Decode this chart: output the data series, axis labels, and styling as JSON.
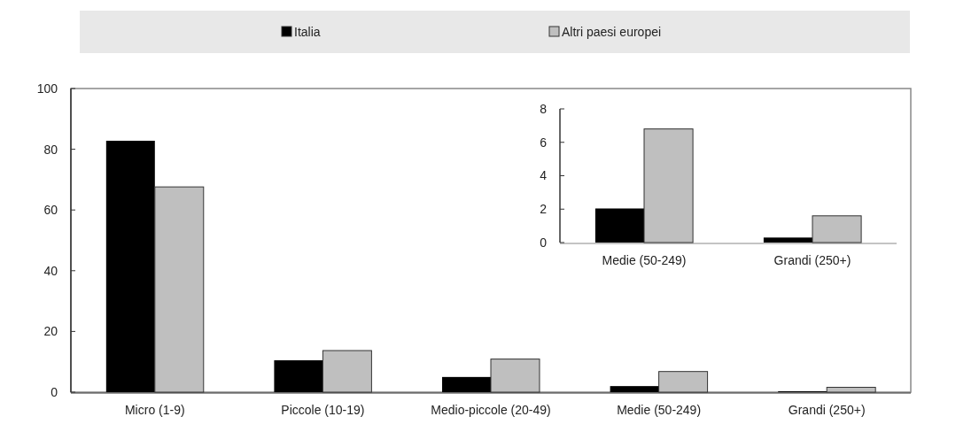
{
  "chart_data": [
    {
      "type": "bar",
      "categories": [
        "Micro (1-9)",
        "Piccole (10-19)",
        "Medio-piccole (20-49)",
        "Medie (50-249)",
        "Grandi (250+)"
      ],
      "series": [
        {
          "name": "Italia",
          "color": "#000000",
          "values": [
            82.8,
            10.5,
            5.0,
            2.0,
            0.3
          ]
        },
        {
          "name": "Altri paesi europei",
          "color": "#bfbfbf",
          "values": [
            67.6,
            13.7,
            10.9,
            6.8,
            1.6
          ]
        }
      ],
      "ylim": [
        0,
        100
      ],
      "yticks": [
        0,
        20,
        40,
        60,
        80,
        100
      ],
      "legend": "top",
      "grid": false
    },
    {
      "type": "bar",
      "categories": [
        "Medie (50-249)",
        "Grandi (250+)"
      ],
      "series": [
        {
          "color": "#000000",
          "values": [
            2.04,
            0.3
          ]
        },
        {
          "color": "#bfbfbf",
          "values": [
            6.8,
            1.6
          ]
        }
      ],
      "ylim": [
        0,
        8
      ],
      "yticks": [
        0,
        2,
        4,
        6,
        8
      ],
      "grid": false
    }
  ]
}
